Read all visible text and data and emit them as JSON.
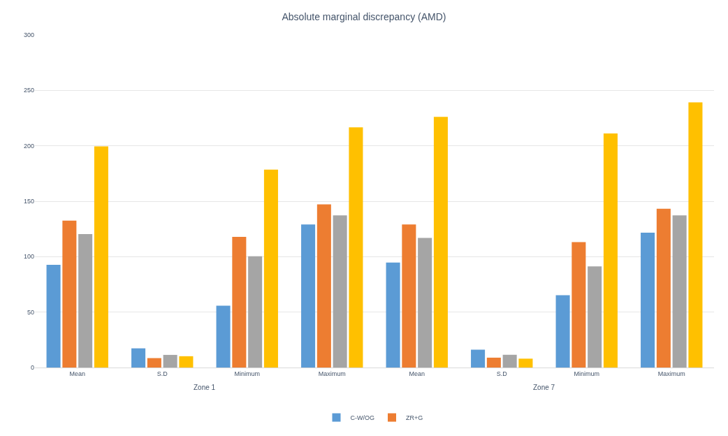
{
  "chart_data": {
    "type": "bar",
    "title": "Absolute marginal discrepancy (AMD)",
    "categories": [
      "Mean",
      "S.D",
      "Minimum",
      "Maximum",
      "Mean",
      "S.D",
      "Minimum",
      "Maximum"
    ],
    "series": [
      {
        "name": "C-W/OG",
        "color": "#5b9bd5",
        "values": [
          92.7,
          17.3,
          55.8,
          129,
          94.7,
          16.1,
          65.2,
          121.6
        ]
      },
      {
        "name": "ZR+G",
        "color": "#ed7d31",
        "values": [
          132.5,
          8.5,
          117.9,
          147.1,
          129,
          8.9,
          113.1,
          143.2
        ]
      },
      {
        "color": "#a5a5a5",
        "values": [
          120.4,
          11.4,
          100.4,
          137.3,
          116.9,
          11.5,
          91.3,
          137.3
        ]
      },
      {
        "color": "#ffc000",
        "values": [
          199.5,
          10.2,
          178.5,
          216.6,
          226.1,
          8.0,
          211.2,
          239.2
        ]
      }
    ],
    "annotations": [
      "Zone 1",
      "Zone 7"
    ],
    "ylim": [
      0,
      300
    ],
    "yticks": [
      0,
      50,
      100,
      150,
      200,
      250,
      300
    ],
    "grid": "y",
    "legend": "bottom"
  }
}
